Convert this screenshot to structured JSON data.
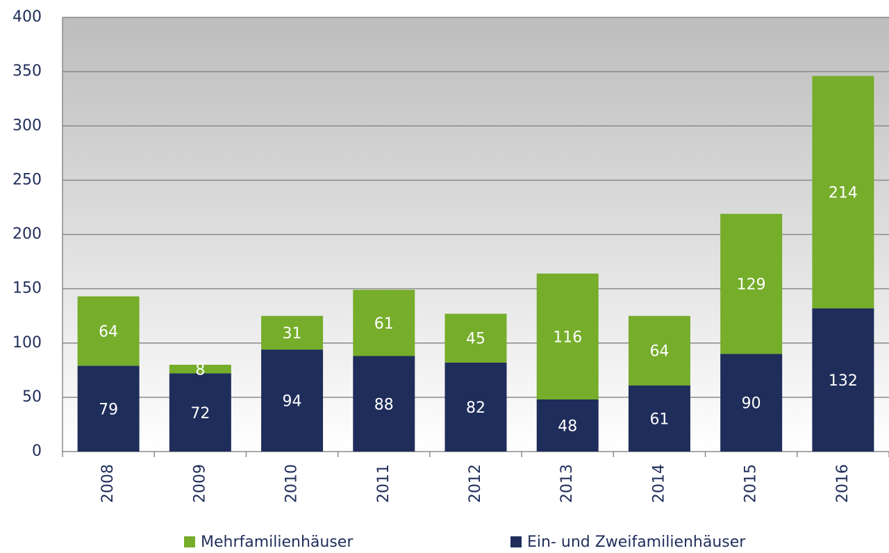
{
  "chart_data": {
    "type": "stacked_bar",
    "categories": [
      "2008",
      "2009",
      "2010",
      "2011",
      "2012",
      "2013",
      "2014",
      "2015",
      "2016"
    ],
    "series": [
      {
        "name": "Ein- und Zweifamilienhäuser",
        "color": "#1f2d5a",
        "values": [
          79,
          72,
          94,
          88,
          82,
          48,
          61,
          90,
          132
        ]
      },
      {
        "name": "Mehrfamilienhäuser",
        "color": "#76ad2b",
        "values": [
          64,
          8,
          31,
          61,
          45,
          116,
          64,
          129,
          214
        ]
      }
    ],
    "ylim": [
      0,
      400
    ],
    "yticks": [
      0,
      50,
      100,
      150,
      200,
      250,
      300,
      350,
      400
    ],
    "grid": true,
    "legend": "bottom"
  }
}
